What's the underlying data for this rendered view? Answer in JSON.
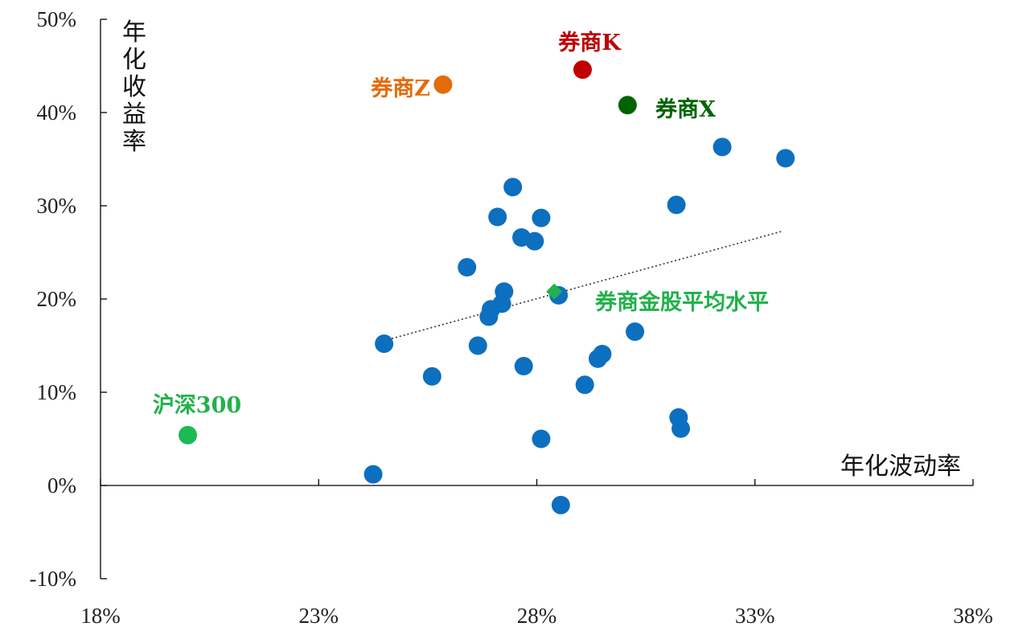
{
  "chart_data": {
    "type": "scatter",
    "xlabel": "年化波动率",
    "ylabel": "年化收益率",
    "xlim": [
      0.18,
      0.38
    ],
    "ylim": [
      -0.1,
      0.5
    ],
    "x_ticks": [
      0.18,
      0.23,
      0.28,
      0.33,
      0.38
    ],
    "x_tick_labels": [
      "18%",
      "23%",
      "28%",
      "33%",
      "38%"
    ],
    "y_ticks": [
      -0.1,
      0.0,
      0.1,
      0.2,
      0.3,
      0.4,
      0.5
    ],
    "y_tick_labels": [
      "-10%",
      "0%",
      "10%",
      "20%",
      "30%",
      "40%",
      "50%"
    ],
    "grid": false,
    "series": [
      {
        "color": "#0d6fbf",
        "points": [
          [
            0.2425,
            0.012
          ],
          [
            0.245,
            0.152
          ],
          [
            0.256,
            0.117
          ],
          [
            0.264,
            0.234
          ],
          [
            0.2665,
            0.15
          ],
          [
            0.269,
            0.181
          ],
          [
            0.2695,
            0.189
          ],
          [
            0.271,
            0.288
          ],
          [
            0.272,
            0.195
          ],
          [
            0.2725,
            0.208
          ],
          [
            0.2745,
            0.32
          ],
          [
            0.2765,
            0.266
          ],
          [
            0.277,
            0.128
          ],
          [
            0.2795,
            0.262
          ],
          [
            0.281,
            0.287
          ],
          [
            0.281,
            0.05
          ],
          [
            0.285,
            0.204
          ],
          [
            0.2855,
            -0.021
          ],
          [
            0.291,
            0.108
          ],
          [
            0.294,
            0.136
          ],
          [
            0.295,
            0.141
          ],
          [
            0.3025,
            0.165
          ],
          [
            0.312,
            0.301
          ],
          [
            0.3125,
            0.073
          ],
          [
            0.313,
            0.061
          ],
          [
            0.3225,
            0.363
          ],
          [
            0.337,
            0.351
          ]
        ]
      },
      {
        "name": "券商K",
        "color": "#c00000",
        "points": [
          [
            0.2905,
            0.446
          ]
        ]
      },
      {
        "name": "券商Z",
        "color": "#e36c09",
        "points": [
          [
            0.2585,
            0.43
          ]
        ]
      },
      {
        "name": "券商X",
        "color": "#006400",
        "points": [
          [
            0.3008,
            0.408
          ]
        ]
      },
      {
        "name": "沪深300",
        "color": "#1db954",
        "points": [
          [
            0.2,
            0.054
          ]
        ]
      },
      {
        "name": "券商金股平均水平",
        "color": "#22b14c",
        "marker": "diamond",
        "points": [
          [
            0.284,
            0.208
          ]
        ]
      }
    ],
    "trendline": {
      "style": "dotted",
      "color": "#333333",
      "from": [
        0.2432,
        0.153
      ],
      "to": [
        0.3365,
        0.273
      ]
    },
    "annotations": [
      {
        "text": "券商K",
        "color": "#c00000"
      },
      {
        "text": "券商Z",
        "color": "#e36c09"
      },
      {
        "text": "券商X",
        "color": "#006400"
      },
      {
        "text": "沪深300",
        "color": "#22b14c"
      },
      {
        "text": "券商金股平均水平",
        "color": "#22b14c"
      }
    ]
  }
}
